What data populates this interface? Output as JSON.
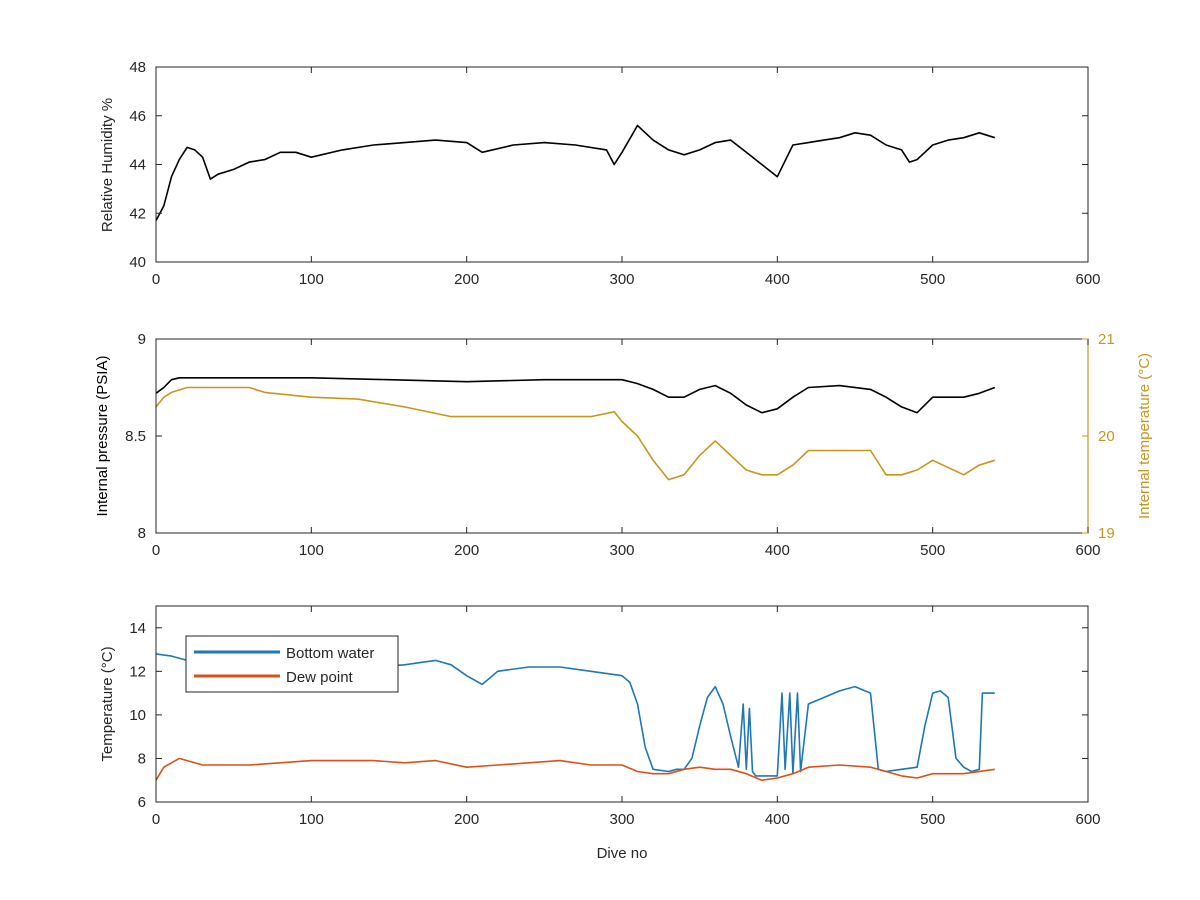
{
  "colors": {
    "axis": "#262626",
    "humidity": "#000000",
    "pressure": "#000000",
    "internal_temperature": "#C8961E",
    "bottom_water": "#1F77B4",
    "dew_point": "#D95319"
  },
  "chart_data": [
    {
      "type": "line",
      "title": "",
      "xlabel": "",
      "ylabel": "Relative Humidity %",
      "xlim": [
        0,
        600
      ],
      "ylim": [
        40,
        48
      ],
      "xticks": [
        0,
        100,
        200,
        300,
        400,
        500,
        600
      ],
      "yticks": [
        40,
        42,
        44,
        46,
        48
      ],
      "grid": false,
      "series": [
        {
          "color": "#000000",
          "x": [
            0,
            5,
            10,
            15,
            20,
            25,
            30,
            35,
            40,
            50,
            60,
            70,
            80,
            90,
            100,
            120,
            140,
            160,
            180,
            200,
            210,
            230,
            250,
            270,
            290,
            295,
            300,
            310,
            315,
            320,
            330,
            340,
            350,
            360,
            370,
            380,
            390,
            400,
            410,
            420,
            430,
            440,
            450,
            460,
            470,
            480,
            485,
            490,
            500,
            510,
            520,
            530,
            540
          ],
          "y": [
            41.7,
            42.3,
            43.5,
            44.2,
            44.7,
            44.6,
            44.3,
            43.4,
            43.6,
            43.8,
            44.1,
            44.2,
            44.5,
            44.5,
            44.3,
            44.6,
            44.8,
            44.9,
            45.0,
            44.9,
            44.5,
            44.8,
            44.9,
            44.8,
            44.6,
            44.0,
            44.5,
            45.6,
            45.3,
            45.0,
            44.6,
            44.4,
            44.6,
            44.9,
            45.0,
            44.5,
            44.0,
            43.5,
            44.8,
            44.9,
            45.0,
            45.1,
            45.3,
            45.2,
            44.8,
            44.6,
            44.1,
            44.2,
            44.8,
            45.0,
            45.1,
            45.3,
            45.1
          ]
        }
      ]
    },
    {
      "type": "line",
      "title": "",
      "xlabel": "",
      "ylabel": "Internal pressure (PSIA)",
      "y2label": "Internal temperature (°C)",
      "xlim": [
        0,
        600
      ],
      "ylim": [
        8,
        9
      ],
      "y2lim": [
        19,
        21
      ],
      "xticks": [
        0,
        100,
        200,
        300,
        400,
        500,
        600
      ],
      "yticks": [
        8,
        8.5,
        9
      ],
      "y2ticks": [
        19,
        20,
        21
      ],
      "grid": false,
      "series": [
        {
          "axis": "left",
          "color": "#000000",
          "x": [
            0,
            5,
            10,
            15,
            30,
            60,
            100,
            150,
            200,
            250,
            300,
            310,
            320,
            330,
            340,
            350,
            360,
            370,
            380,
            390,
            400,
            410,
            420,
            440,
            460,
            470,
            480,
            490,
            500,
            520,
            530,
            540
          ],
          "y": [
            8.72,
            8.75,
            8.79,
            8.8,
            8.8,
            8.8,
            8.8,
            8.79,
            8.78,
            8.79,
            8.79,
            8.77,
            8.74,
            8.7,
            8.7,
            8.74,
            8.76,
            8.72,
            8.66,
            8.62,
            8.64,
            8.7,
            8.75,
            8.76,
            8.74,
            8.7,
            8.65,
            8.62,
            8.7,
            8.7,
            8.72,
            8.75
          ]
        },
        {
          "axis": "right",
          "color": "#C8961E",
          "x": [
            0,
            5,
            10,
            20,
            40,
            60,
            70,
            100,
            130,
            160,
            190,
            200,
            220,
            250,
            280,
            295,
            300,
            310,
            320,
            330,
            340,
            350,
            360,
            370,
            380,
            390,
            400,
            410,
            420,
            440,
            460,
            470,
            480,
            490,
            500,
            520,
            530,
            540
          ],
          "y": [
            20.3,
            20.4,
            20.45,
            20.5,
            20.5,
            20.5,
            20.45,
            20.4,
            20.38,
            20.3,
            20.2,
            20.2,
            20.2,
            20.2,
            20.2,
            20.25,
            20.15,
            20.0,
            19.75,
            19.55,
            19.6,
            19.8,
            19.95,
            19.8,
            19.65,
            19.6,
            19.6,
            19.7,
            19.85,
            19.85,
            19.85,
            19.6,
            19.6,
            19.65,
            19.75,
            19.6,
            19.7,
            19.75
          ]
        }
      ]
    },
    {
      "type": "line",
      "title": "",
      "xlabel": "Dive no",
      "ylabel": "Temperature (°C)",
      "xlim": [
        0,
        600
      ],
      "ylim": [
        6,
        15
      ],
      "xticks": [
        0,
        100,
        200,
        300,
        400,
        500,
        600
      ],
      "yticks": [
        6,
        8,
        10,
        12,
        14
      ],
      "grid": false,
      "legend_position": "top-left",
      "series": [
        {
          "name": "Bottom water",
          "color": "#1F77B4",
          "x": [
            0,
            10,
            20,
            40,
            60,
            80,
            100,
            120,
            140,
            160,
            170,
            180,
            190,
            200,
            210,
            220,
            240,
            260,
            280,
            300,
            305,
            310,
            315,
            320,
            330,
            335,
            340,
            345,
            350,
            355,
            360,
            365,
            370,
            375,
            378,
            380,
            382,
            384,
            386,
            390,
            395,
            400,
            403,
            405,
            408,
            410,
            413,
            415,
            420,
            430,
            440,
            450,
            460,
            465,
            470,
            480,
            490,
            495,
            500,
            505,
            510,
            515,
            520,
            525,
            530,
            532,
            535,
            540
          ],
          "y": [
            12.8,
            12.7,
            12.5,
            12.5,
            12.5,
            12.3,
            12.2,
            12.2,
            12.2,
            12.3,
            12.4,
            12.5,
            12.3,
            11.8,
            11.4,
            12.0,
            12.2,
            12.2,
            12.0,
            11.8,
            11.5,
            10.5,
            8.5,
            7.5,
            7.4,
            7.5,
            7.5,
            8.0,
            9.5,
            10.8,
            11.3,
            10.5,
            9.0,
            7.6,
            10.5,
            7.5,
            10.3,
            7.4,
            7.2,
            7.2,
            7.2,
            7.2,
            11.0,
            7.5,
            11.0,
            7.3,
            11.0,
            7.4,
            10.5,
            10.8,
            11.1,
            11.3,
            11.0,
            7.5,
            7.4,
            7.5,
            7.6,
            9.5,
            11.0,
            11.1,
            10.8,
            8.0,
            7.6,
            7.4,
            7.5,
            11.0,
            11.0,
            11.0
          ]
        },
        {
          "name": "Dew point",
          "color": "#D95319",
          "x": [
            0,
            5,
            10,
            15,
            20,
            30,
            40,
            60,
            80,
            100,
            120,
            140,
            160,
            180,
            200,
            220,
            240,
            260,
            280,
            300,
            310,
            320,
            330,
            340,
            350,
            360,
            370,
            380,
            390,
            400,
            410,
            420,
            440,
            460,
            470,
            480,
            490,
            500,
            520,
            540
          ],
          "y": [
            7.0,
            7.6,
            7.8,
            8.0,
            7.9,
            7.7,
            7.7,
            7.7,
            7.8,
            7.9,
            7.9,
            7.9,
            7.8,
            7.9,
            7.6,
            7.7,
            7.8,
            7.9,
            7.7,
            7.7,
            7.4,
            7.3,
            7.3,
            7.5,
            7.6,
            7.5,
            7.5,
            7.3,
            7.0,
            7.1,
            7.3,
            7.6,
            7.7,
            7.6,
            7.4,
            7.2,
            7.1,
            7.3,
            7.3,
            7.5
          ]
        }
      ]
    }
  ]
}
